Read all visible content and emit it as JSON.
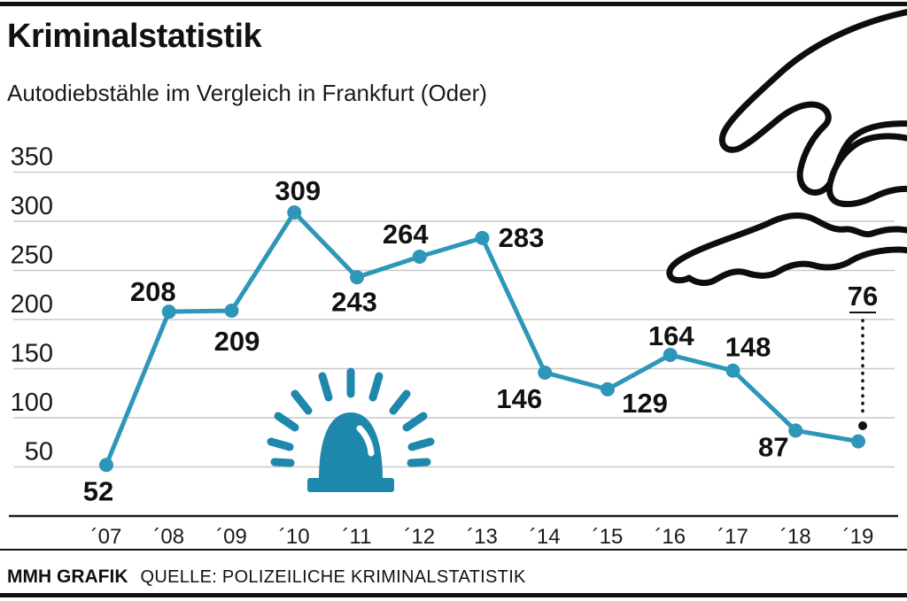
{
  "header": {
    "title": "Kriminalstatistik",
    "subtitle": "Autodiebstähle im Vergleich in Frankfurt (Oder)"
  },
  "footer": {
    "brand": "MMH GRAFIK",
    "source": "QUELLE: POLIZEILICHE KRIMINALSTATISTIK"
  },
  "icons": {
    "siren": "police-siren-icon",
    "hand": "grabbing-hand-illustration"
  },
  "colors": {
    "line": "#2e96b8",
    "siren": "#1e87ac",
    "grid": "#c9c9c9",
    "ink": "#111111",
    "axis": "#1d1d1b"
  },
  "chart_data": {
    "type": "line",
    "title": "Kriminalstatistik",
    "subtitle": "Autodiebstähle im Vergleich in Frankfurt (Oder)",
    "categories": [
      "´07",
      "´08",
      "´09",
      "´10",
      "´11",
      "´12",
      "´13",
      "´14",
      "´15",
      "´16",
      "´17",
      "´18",
      "´19"
    ],
    "values": [
      52,
      208,
      209,
      309,
      243,
      264,
      283,
      146,
      129,
      164,
      148,
      87,
      76
    ],
    "xlabel": "",
    "ylabel": "",
    "ylim": [
      0,
      350
    ],
    "yticks": [
      50,
      100,
      150,
      200,
      250,
      300,
      350
    ],
    "grid": "horizontal",
    "legend": "none",
    "marker": "circle",
    "data_labels": true,
    "last_value_callout": true,
    "source": "QUELLE: POLIZEILICHE KRIMINALSTATISTIK"
  }
}
